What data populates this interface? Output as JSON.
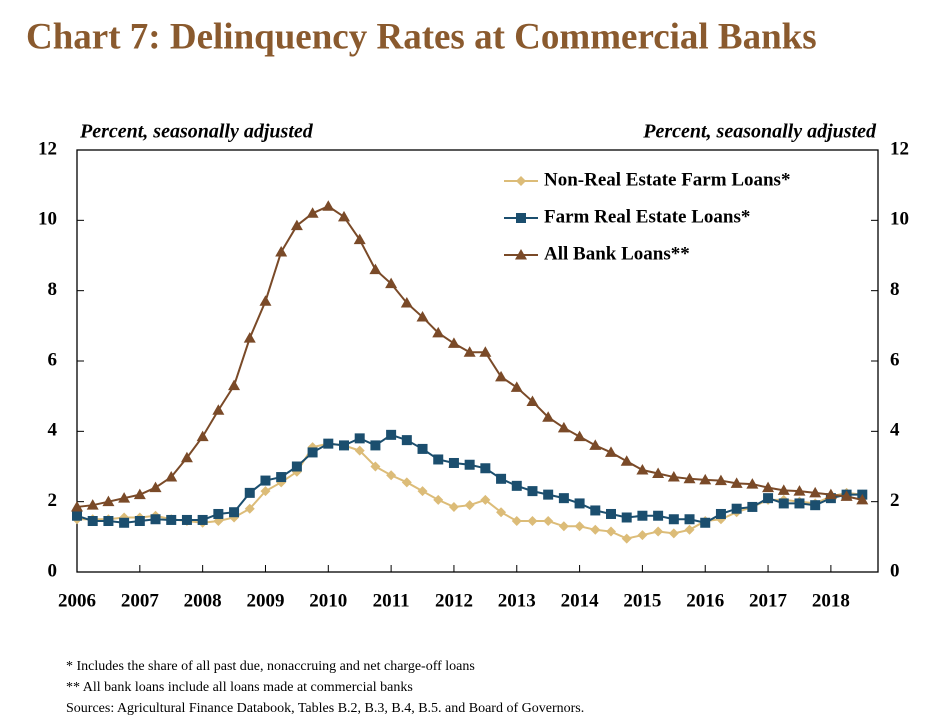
{
  "chart_data": {
    "type": "line",
    "title": "Chart 7: Delinquency Rates at Commercial Banks",
    "y_label": "Percent, seasonally adjusted",
    "y2_label": "Percent, seasonally adjusted",
    "footnotes": [
      "* Includes the share of all past due, nonaccruing and net charge-off loans",
      "** All bank loans include all loans made at commercial banks",
      "Sources: Agricultural Finance Databook, Tables B.2, B.3, B.4, B.5. and Board of Governors."
    ],
    "x": [
      2006,
      2006.25,
      2006.5,
      2006.75,
      2007,
      2007.25,
      2007.5,
      2007.75,
      2008,
      2008.25,
      2008.5,
      2008.75,
      2009,
      2009.25,
      2009.5,
      2009.75,
      2010,
      2010.25,
      2010.5,
      2010.75,
      2011,
      2011.25,
      2011.5,
      2011.75,
      2012,
      2012.25,
      2012.5,
      2012.75,
      2013,
      2013.25,
      2013.5,
      2013.75,
      2014,
      2014.25,
      2014.5,
      2014.75,
      2015,
      2015.25,
      2015.5,
      2015.75,
      2016,
      2016.25,
      2016.5,
      2016.75,
      2017,
      2017.25,
      2017.5,
      2017.75,
      2018,
      2018.25,
      2018.5
    ],
    "xlim": [
      2006,
      2018.75
    ],
    "xticks": [
      2006,
      2007,
      2008,
      2009,
      2010,
      2011,
      2012,
      2013,
      2014,
      2015,
      2016,
      2017,
      2018
    ],
    "ylim": [
      0,
      12
    ],
    "yticks": [
      0,
      2,
      4,
      6,
      8,
      10,
      12
    ],
    "y2lim": [
      0,
      12
    ],
    "y2ticks": [
      0,
      2,
      4,
      6,
      8,
      10,
      12
    ],
    "legend": "upper right",
    "series": [
      {
        "name": "Non-Real Estate Farm Loans*",
        "color": "#dcbc78",
        "marker": "diamond",
        "values": [
          1.5,
          1.5,
          1.5,
          1.55,
          1.55,
          1.6,
          1.5,
          1.45,
          1.4,
          1.45,
          1.55,
          1.8,
          2.3,
          2.55,
          2.85,
          3.55,
          3.65,
          3.6,
          3.45,
          3.0,
          2.75,
          2.55,
          2.3,
          2.05,
          1.85,
          1.9,
          2.05,
          1.7,
          1.45,
          1.45,
          1.45,
          1.3,
          1.3,
          1.2,
          1.15,
          0.95,
          1.05,
          1.15,
          1.1,
          1.2,
          1.45,
          1.5,
          1.7,
          1.85,
          2.05,
          2.05,
          2.0,
          1.95,
          2.15,
          2.25,
          2.2
        ]
      },
      {
        "name": "Farm Real Estate Loans*",
        "color": "#1b4e6e",
        "marker": "square",
        "values": [
          1.6,
          1.45,
          1.45,
          1.4,
          1.45,
          1.5,
          1.48,
          1.48,
          1.48,
          1.65,
          1.7,
          2.25,
          2.6,
          2.7,
          3.0,
          3.4,
          3.65,
          3.6,
          3.8,
          3.6,
          3.9,
          3.75,
          3.5,
          3.2,
          3.1,
          3.05,
          2.95,
          2.65,
          2.45,
          2.3,
          2.2,
          2.1,
          1.95,
          1.75,
          1.65,
          1.55,
          1.6,
          1.6,
          1.5,
          1.5,
          1.4,
          1.65,
          1.8,
          1.85,
          2.1,
          1.95,
          1.95,
          1.9,
          2.1,
          2.2,
          2.2
        ]
      },
      {
        "name": "All Bank Loans**",
        "color": "#7a4a28",
        "marker": "triangle",
        "values": [
          1.85,
          1.9,
          2.0,
          2.1,
          2.2,
          2.4,
          2.7,
          3.25,
          3.85,
          4.6,
          5.3,
          6.65,
          7.7,
          9.1,
          9.85,
          10.2,
          10.4,
          10.1,
          9.45,
          8.6,
          8.2,
          7.65,
          7.25,
          6.8,
          6.5,
          6.25,
          6.25,
          5.55,
          5.25,
          4.85,
          4.4,
          4.1,
          3.85,
          3.6,
          3.4,
          3.15,
          2.9,
          2.8,
          2.7,
          2.65,
          2.62,
          2.6,
          2.52,
          2.5,
          2.4,
          2.32,
          2.3,
          2.25,
          2.2,
          2.15,
          2.05
        ]
      }
    ]
  }
}
